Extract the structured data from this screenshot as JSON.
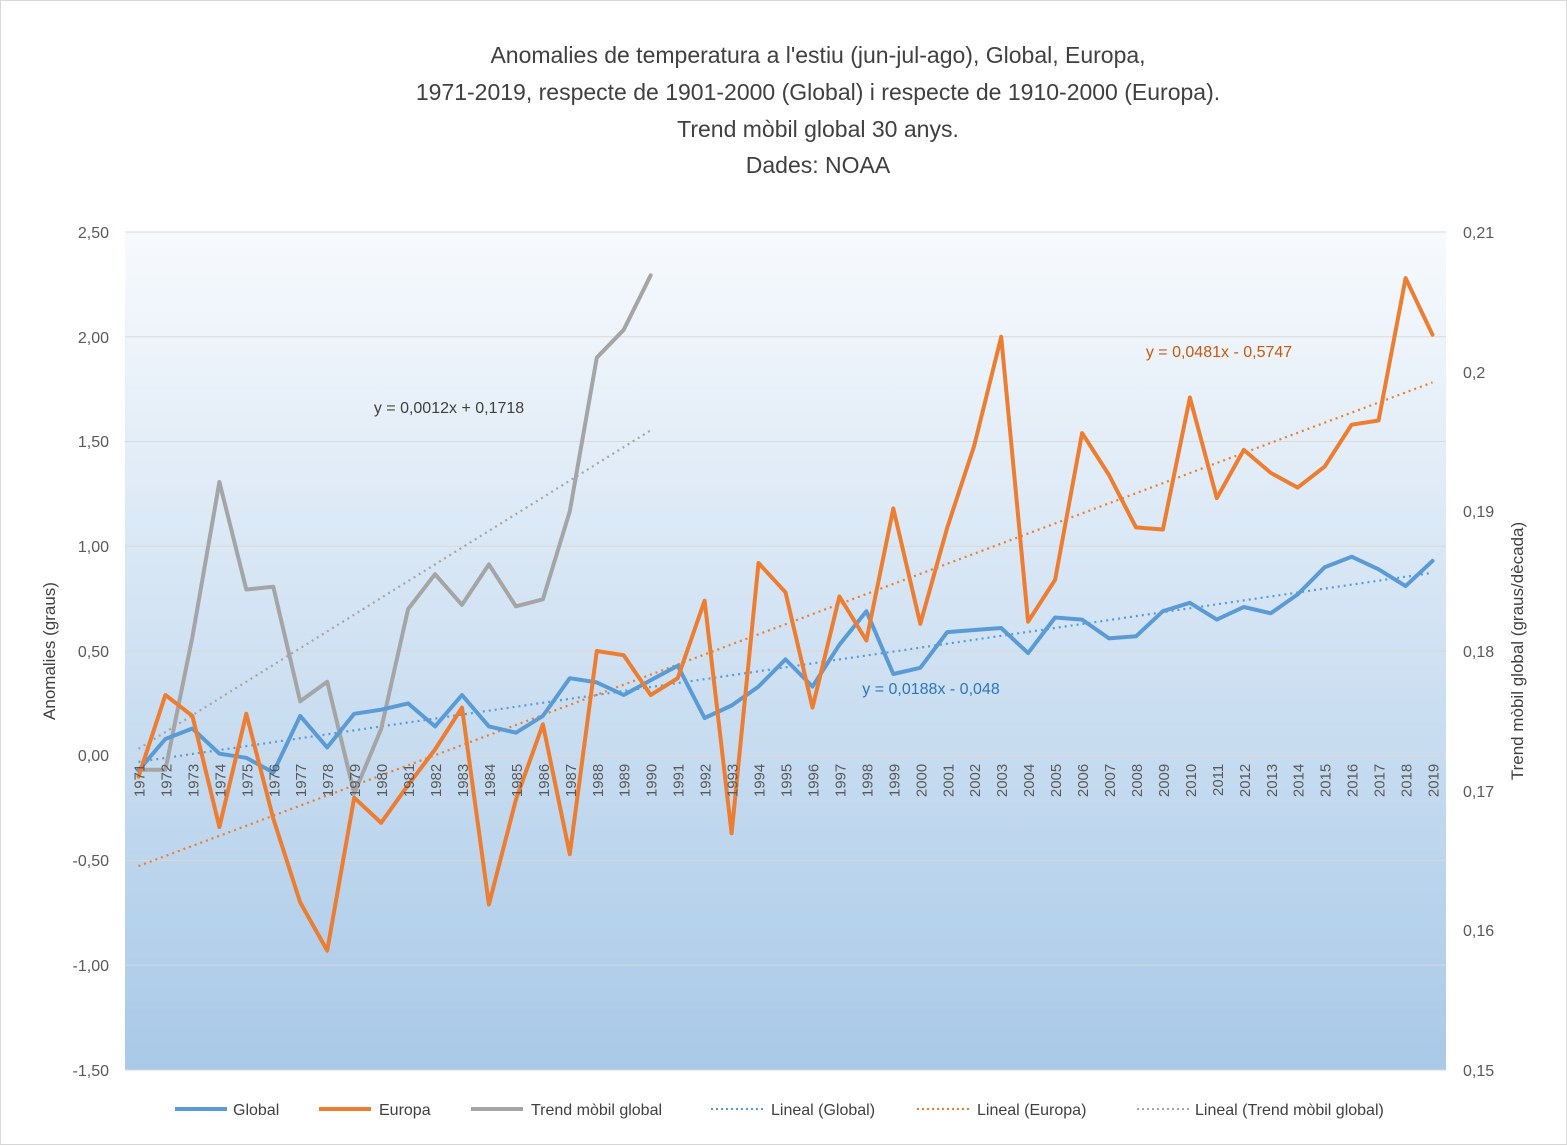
{
  "chart_data": {
    "type": "line",
    "title": [
      "Anomalies de temperatura a l'estiu (jun-jul-ago), Global, Europa,",
      "1971-2019, respecte de 1901-2000 (Global) i respecte de 1910-2000 (Europa).",
      "Trend mòbil global 30 anys.",
      "Dades:  NOAA"
    ],
    "ylabel": "Anomalies (graus)",
    "y2label": "Trend mòbil global (graus/dècada)",
    "ylim": [
      -1.5,
      2.5
    ],
    "y2lim": [
      0.15,
      0.21
    ],
    "yticks": [
      "2,50",
      "2,00",
      "1,50",
      "1,00",
      "0,50",
      "0,00",
      "-0,50",
      "-1,00",
      "-1,50"
    ],
    "y2ticks": [
      "0,21",
      "0,2",
      "0,19",
      "0,18",
      "0,17",
      "0,16",
      "0,15"
    ],
    "grid": true,
    "legend_position": "bottom",
    "x": [
      "1971",
      "1972",
      "1973",
      "1974",
      "1975",
      "1976",
      "1977",
      "1978",
      "1979",
      "1980",
      "1981",
      "1982",
      "1983",
      "1984",
      "1985",
      "1986",
      "1987",
      "1988",
      "1989",
      "1990",
      "1991",
      "1992",
      "1993",
      "1994",
      "1995",
      "1996",
      "1997",
      "1998",
      "1999",
      "2000",
      "2001",
      "2002",
      "2003",
      "2004",
      "2005",
      "2006",
      "2007",
      "2008",
      "2009",
      "2010",
      "2011",
      "2012",
      "2013",
      "2014",
      "2015",
      "2016",
      "2017",
      "2018",
      "2019"
    ],
    "series": [
      {
        "name": "Global",
        "axis": "left",
        "color": "#5b9bd5",
        "values": [
          -0.07,
          0.08,
          0.13,
          0.01,
          -0.01,
          -0.08,
          0.19,
          0.04,
          0.2,
          0.22,
          0.25,
          0.14,
          0.29,
          0.14,
          0.11,
          0.19,
          0.37,
          0.35,
          0.29,
          0.36,
          0.43,
          0.18,
          0.24,
          0.33,
          0.46,
          0.33,
          0.53,
          0.69,
          0.39,
          0.42,
          0.59,
          0.6,
          0.61,
          0.49,
          0.66,
          0.65,
          0.56,
          0.57,
          0.69,
          0.73,
          0.65,
          0.71,
          0.68,
          0.77,
          0.9,
          0.95,
          0.89,
          0.81,
          0.93
        ]
      },
      {
        "name": "Europa",
        "axis": "left",
        "color": "#ed7d31",
        "values": [
          -0.1,
          0.29,
          0.19,
          -0.34,
          0.2,
          -0.3,
          -0.7,
          -0.93,
          -0.2,
          -0.32,
          -0.14,
          0.03,
          0.23,
          -0.71,
          -0.21,
          0.15,
          -0.47,
          0.5,
          0.48,
          0.29,
          0.37,
          0.74,
          -0.37,
          0.92,
          0.78,
          0.23,
          0.76,
          0.55,
          1.18,
          0.63,
          1.09,
          1.48,
          2.0,
          0.64,
          0.84,
          1.54,
          1.34,
          1.09,
          1.08,
          1.71,
          1.23,
          1.46,
          1.35,
          1.28,
          1.38,
          1.58,
          1.6,
          2.28,
          2.01
        ]
      },
      {
        "name": "Trend mòbil global",
        "axis": "right",
        "color": "#a5a5a5",
        "values": [
          0.1715,
          0.1715,
          0.181,
          0.1921,
          0.1844,
          0.1846,
          0.1764,
          0.1778,
          0.1698,
          0.1744,
          0.183,
          0.1855,
          0.1833,
          0.1862,
          0.1832,
          0.1837,
          0.19,
          0.201,
          0.203,
          0.2069,
          null,
          null,
          null,
          null,
          null,
          null,
          null,
          null,
          null,
          null,
          null,
          null,
          null,
          null,
          null,
          null,
          null,
          null,
          null,
          null,
          null,
          null,
          null,
          null,
          null,
          null,
          null,
          null,
          null
        ]
      }
    ],
    "trendlines": [
      {
        "name": "Lineal  (Global)",
        "series": "Global",
        "axis": "left",
        "color": "#5b9bd5",
        "slope": 0.0188,
        "intercept": -0.048,
        "from": 1,
        "to": 49,
        "equation": "y = 0,0188x - 0,048"
      },
      {
        "name": "Lineal  (Europa)",
        "series": "Europa",
        "axis": "left",
        "color": "#ed7d31",
        "slope": 0.0481,
        "intercept": -0.5747,
        "from": 1,
        "to": 49,
        "equation": "y = 0,0481x - 0,5747"
      },
      {
        "name": "Lineal  (Trend mòbil global)",
        "series": "Trend mòbil global",
        "axis": "right",
        "color": "#a5a5a5",
        "slope": 0.0012,
        "intercept": 0.1718,
        "from": 1,
        "to": 20,
        "equation": "y = 0,0012x + 0,1718"
      }
    ]
  }
}
